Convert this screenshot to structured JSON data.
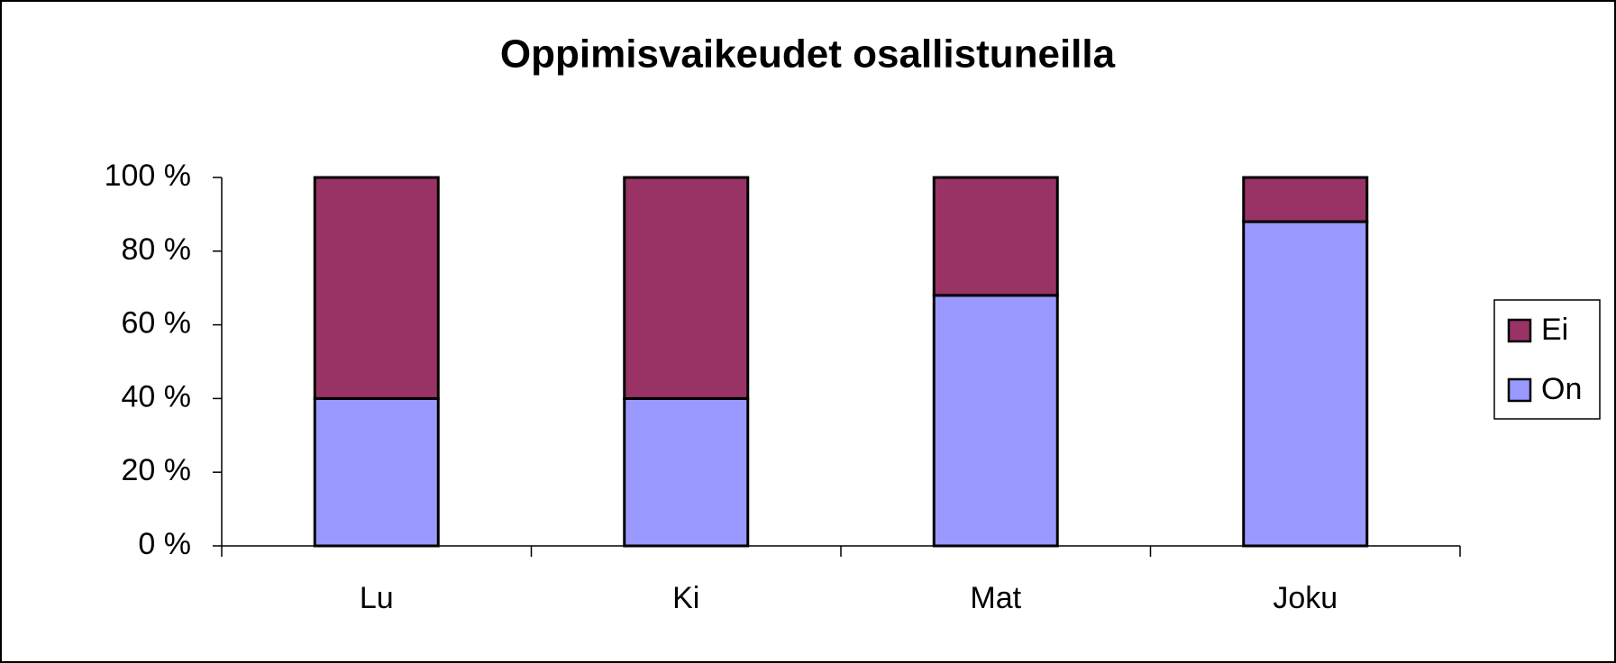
{
  "chart_data": {
    "type": "stacked_bar",
    "title": "Oppimisvaikeudet osallistuneilla",
    "categories": [
      "Lu",
      "Ki",
      "Mat",
      "Joku"
    ],
    "series": [
      {
        "name": "On",
        "color": "#9999ff",
        "values": [
          40,
          40,
          68,
          88
        ]
      },
      {
        "name": "Ei",
        "color": "#993366",
        "values": [
          60,
          60,
          32,
          12
        ]
      }
    ],
    "ylim": [
      0,
      100
    ],
    "yticks": [
      {
        "value": 0,
        "label": "0 %"
      },
      {
        "value": 20,
        "label": "20 %"
      },
      {
        "value": 40,
        "label": "40 %"
      },
      {
        "value": 60,
        "label": "60 %"
      },
      {
        "value": 80,
        "label": "80 %"
      },
      {
        "value": 100,
        "label": "100 %"
      }
    ],
    "legend": "right"
  }
}
